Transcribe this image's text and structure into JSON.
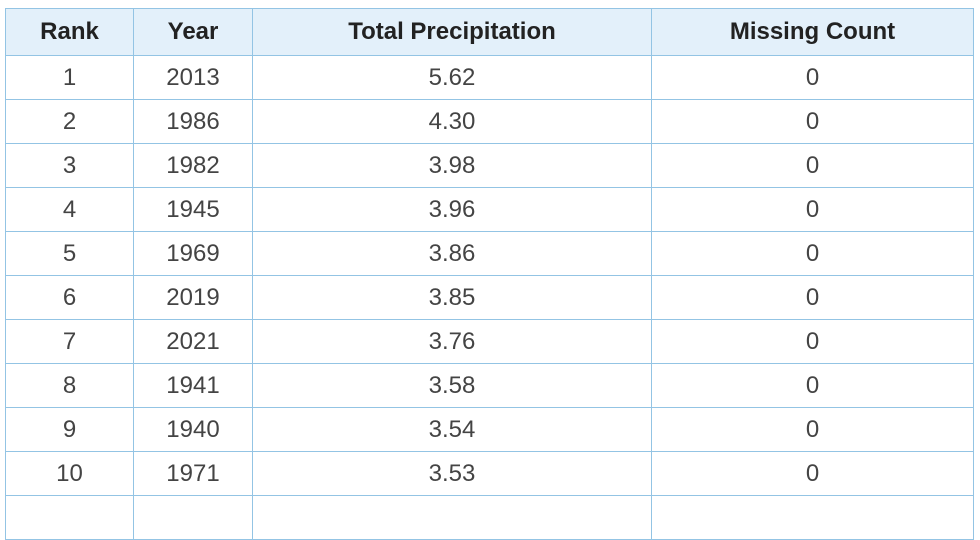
{
  "table": {
    "columns": [
      "Rank",
      "Year",
      "Total Precipitation",
      "Missing Count"
    ],
    "rows": [
      [
        "1",
        "2013",
        "5.62",
        "0"
      ],
      [
        "2",
        "1986",
        "4.30",
        "0"
      ],
      [
        "3",
        "1982",
        "3.98",
        "0"
      ],
      [
        "4",
        "1945",
        "3.96",
        "0"
      ],
      [
        "5",
        "1969",
        "3.86",
        "0"
      ],
      [
        "6",
        "2019",
        "3.85",
        "0"
      ],
      [
        "7",
        "2021",
        "3.76",
        "0"
      ],
      [
        "8",
        "1941",
        "3.58",
        "0"
      ],
      [
        "9",
        "1940",
        "3.54",
        "0"
      ],
      [
        "10",
        "1971",
        "3.53",
        "0"
      ]
    ]
  }
}
